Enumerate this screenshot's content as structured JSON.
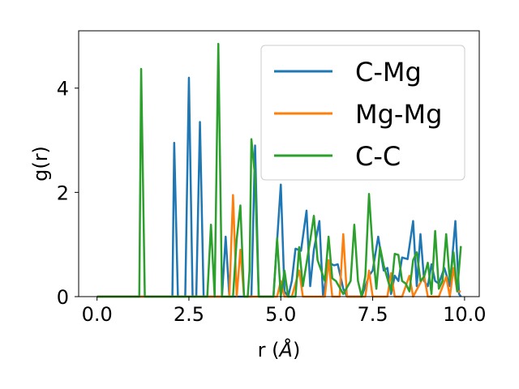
{
  "chart_data": {
    "type": "line",
    "xlabel_prefix": "r (",
    "xlabel_unit": "Å",
    "xlabel_suffix": ")",
    "ylabel": "g(r)",
    "xlim": [
      -0.5,
      10.4
    ],
    "ylim": [
      0,
      5.1
    ],
    "xticks": [
      0.0,
      2.5,
      5.0,
      7.5,
      10.0
    ],
    "xtick_labels": [
      "0.0",
      "2.5",
      "5.0",
      "7.5",
      "10.0"
    ],
    "yticks": [
      0,
      2,
      4
    ],
    "ytick_labels": [
      "0",
      "2",
      "4"
    ],
    "grid": false,
    "legend_position": "upper right",
    "series": [
      {
        "name": "C-Mg",
        "color": "#1f77b4",
        "points": [
          [
            0.0,
            0
          ],
          [
            1.0,
            0
          ],
          [
            2.0,
            0
          ],
          [
            2.05,
            0
          ],
          [
            2.1,
            2.95
          ],
          [
            2.2,
            0
          ],
          [
            2.4,
            0
          ],
          [
            2.5,
            4.2
          ],
          [
            2.6,
            0
          ],
          [
            2.7,
            0
          ],
          [
            2.8,
            3.35
          ],
          [
            2.9,
            0
          ],
          [
            3.2,
            0
          ],
          [
            3.4,
            0
          ],
          [
            3.5,
            1.15
          ],
          [
            3.6,
            0
          ],
          [
            4.0,
            0
          ],
          [
            4.2,
            0
          ],
          [
            4.3,
            2.9
          ],
          [
            4.4,
            0
          ],
          [
            4.8,
            0
          ],
          [
            5.0,
            2.15
          ],
          [
            5.1,
            0.1
          ],
          [
            5.2,
            0
          ],
          [
            5.3,
            0.3
          ],
          [
            5.4,
            0.92
          ],
          [
            5.55,
            0.88
          ],
          [
            5.7,
            1.65
          ],
          [
            5.8,
            0.2
          ],
          [
            5.9,
            0.9
          ],
          [
            6.05,
            1.45
          ],
          [
            6.15,
            0
          ],
          [
            6.3,
            0.65
          ],
          [
            6.45,
            0.6
          ],
          [
            6.55,
            0.62
          ],
          [
            6.7,
            0.15
          ],
          [
            6.8,
            0
          ],
          [
            7.0,
            0
          ],
          [
            7.2,
            0
          ],
          [
            7.4,
            0.4
          ],
          [
            7.5,
            0.5
          ],
          [
            7.65,
            1.15
          ],
          [
            7.8,
            0.5
          ],
          [
            7.9,
            0.55
          ],
          [
            8.0,
            0.05
          ],
          [
            8.1,
            0.4
          ],
          [
            8.2,
            0.3
          ],
          [
            8.3,
            0.75
          ],
          [
            8.45,
            0.72
          ],
          [
            8.6,
            1.45
          ],
          [
            8.7,
            0.2
          ],
          [
            8.8,
            1.2
          ],
          [
            8.9,
            0.3
          ],
          [
            9.0,
            0.2
          ],
          [
            9.1,
            0.62
          ],
          [
            9.2,
            0.3
          ],
          [
            9.3,
            0.25
          ],
          [
            9.45,
            0.55
          ],
          [
            9.6,
            0.2
          ],
          [
            9.75,
            1.45
          ],
          [
            9.85,
            0.05
          ],
          [
            9.9,
            0
          ]
        ]
      },
      {
        "name": "Mg-Mg",
        "color": "#ff7f0e",
        "points": [
          [
            0.0,
            0
          ],
          [
            3.5,
            0
          ],
          [
            3.6,
            0
          ],
          [
            3.7,
            1.95
          ],
          [
            3.8,
            0
          ],
          [
            3.9,
            0.9
          ],
          [
            4.0,
            0
          ],
          [
            4.9,
            0
          ],
          [
            5.0,
            0.3
          ],
          [
            5.1,
            0
          ],
          [
            5.3,
            0
          ],
          [
            5.5,
            0.5
          ],
          [
            5.6,
            0
          ],
          [
            6.2,
            0
          ],
          [
            6.3,
            0.7
          ],
          [
            6.4,
            0
          ],
          [
            6.6,
            0
          ],
          [
            6.7,
            1.2
          ],
          [
            6.8,
            0
          ],
          [
            7.3,
            0
          ],
          [
            7.4,
            0.5
          ],
          [
            7.5,
            0
          ],
          [
            7.9,
            0
          ],
          [
            8.0,
            0.45
          ],
          [
            8.1,
            0
          ],
          [
            8.3,
            0
          ],
          [
            8.5,
            0.4
          ],
          [
            8.6,
            0
          ],
          [
            8.9,
            0.4
          ],
          [
            9.0,
            0
          ],
          [
            9.3,
            0
          ],
          [
            9.5,
            0.38
          ],
          [
            9.6,
            0
          ],
          [
            9.7,
            0.55
          ],
          [
            9.8,
            0.1
          ],
          [
            9.9,
            0.1
          ]
        ]
      },
      {
        "name": "C-C",
        "color": "#2ca02c",
        "points": [
          [
            0.0,
            0
          ],
          [
            1.1,
            0
          ],
          [
            1.15,
            0
          ],
          [
            1.2,
            4.37
          ],
          [
            1.3,
            0
          ],
          [
            1.5,
            0
          ],
          [
            3.0,
            0
          ],
          [
            3.1,
            1.38
          ],
          [
            3.2,
            0
          ],
          [
            3.3,
            4.85
          ],
          [
            3.4,
            0
          ],
          [
            3.5,
            0
          ],
          [
            3.6,
            0
          ],
          [
            3.7,
            0
          ],
          [
            3.8,
            1.1
          ],
          [
            3.9,
            1.75
          ],
          [
            4.0,
            0
          ],
          [
            4.1,
            0
          ],
          [
            4.15,
            0.5
          ],
          [
            4.2,
            3.02
          ],
          [
            4.3,
            2.3
          ],
          [
            4.4,
            0
          ],
          [
            4.5,
            0
          ],
          [
            4.8,
            0
          ],
          [
            4.9,
            1.12
          ],
          [
            5.0,
            0
          ],
          [
            5.1,
            0.5
          ],
          [
            5.2,
            0
          ],
          [
            5.4,
            0
          ],
          [
            5.5,
            0.95
          ],
          [
            5.6,
            0.2
          ],
          [
            5.8,
            1.08
          ],
          [
            5.9,
            1.55
          ],
          [
            6.0,
            0.7
          ],
          [
            6.2,
            0.3
          ],
          [
            6.3,
            1.15
          ],
          [
            6.4,
            0.35
          ],
          [
            6.5,
            0.3
          ],
          [
            6.7,
            0.05
          ],
          [
            6.9,
            0.3
          ],
          [
            7.0,
            1.38
          ],
          [
            7.1,
            0.3
          ],
          [
            7.2,
            0
          ],
          [
            7.3,
            0.4
          ],
          [
            7.4,
            1.97
          ],
          [
            7.5,
            0.9
          ],
          [
            7.6,
            0.15
          ],
          [
            7.7,
            0.95
          ],
          [
            7.8,
            0.6
          ],
          [
            7.9,
            0.35
          ],
          [
            8.0,
            0.1
          ],
          [
            8.1,
            0.82
          ],
          [
            8.2,
            0.8
          ],
          [
            8.3,
            0.3
          ],
          [
            8.4,
            0.25
          ],
          [
            8.5,
            0.1
          ],
          [
            8.6,
            0.7
          ],
          [
            8.7,
            0.85
          ],
          [
            8.8,
            0.3
          ],
          [
            8.9,
            0.38
          ],
          [
            9.0,
            0.65
          ],
          [
            9.1,
            0.05
          ],
          [
            9.2,
            1.26
          ],
          [
            9.3,
            0.15
          ],
          [
            9.4,
            0.3
          ],
          [
            9.5,
            1.2
          ],
          [
            9.6,
            0.3
          ],
          [
            9.7,
            0.85
          ],
          [
            9.8,
            0.1
          ],
          [
            9.9,
            0.97
          ]
        ]
      }
    ]
  }
}
